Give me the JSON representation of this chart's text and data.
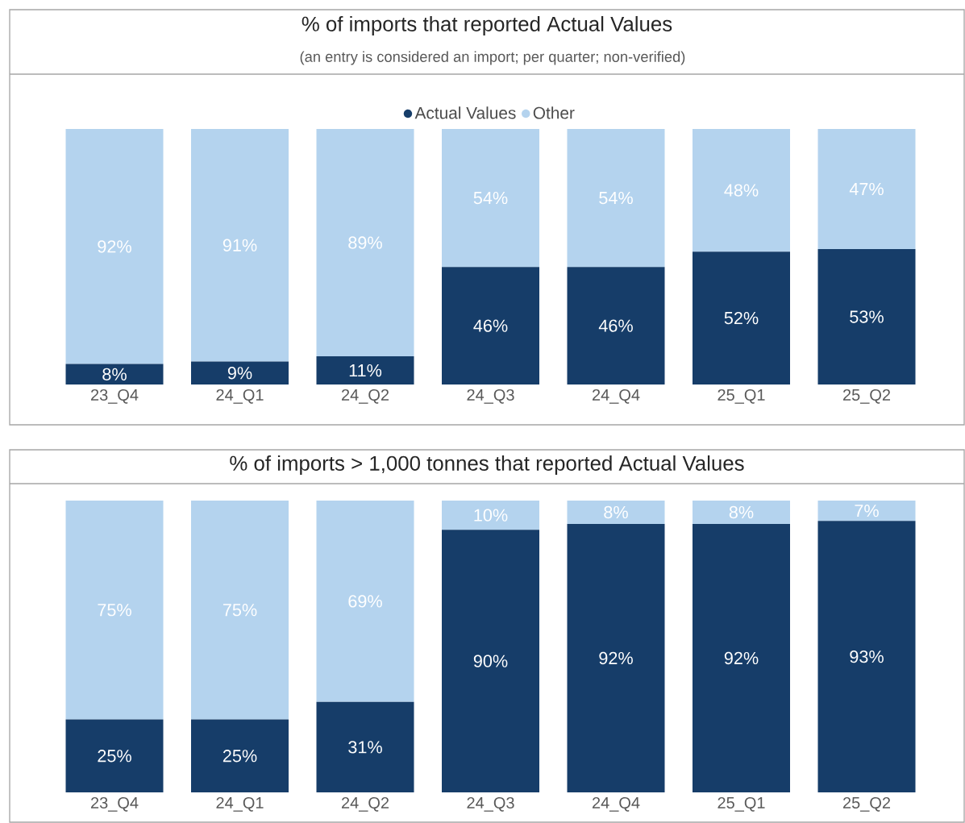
{
  "chart_data": [
    {
      "type": "bar",
      "title": "% of imports that reported Actual Values",
      "subtitle": "(an entry is considered an import; per quarter; non-verified)",
      "categories": [
        "23_Q4",
        "24_Q1",
        "24_Q2",
        "24_Q3",
        "24_Q4",
        "25_Q1",
        "25_Q2"
      ],
      "stacked": true,
      "legend": "top",
      "tick_labels": "x",
      "series": [
        {
          "name": "Actual Values",
          "color": "#163d69",
          "values": [
            8,
            9,
            11,
            46,
            46,
            52,
            53
          ],
          "value_labels": [
            "8%",
            "9%",
            "11%",
            "46%",
            "46%",
            "52%",
            "53%"
          ]
        },
        {
          "name": "Other",
          "color": "#b4d3ee",
          "values": [
            92,
            91,
            89,
            54,
            54,
            48,
            47
          ],
          "value_labels": [
            "92%",
            "91%",
            "89%",
            "54%",
            "54%",
            "48%",
            "47%"
          ]
        }
      ]
    },
    {
      "type": "bar",
      "title": "% of imports > 1,000 tonnes that reported Actual Values",
      "categories": [
        "23_Q4",
        "24_Q1",
        "24_Q2",
        "24_Q3",
        "24_Q4",
        "25_Q1",
        "25_Q2"
      ],
      "stacked": true,
      "tick_labels": "x",
      "series": [
        {
          "color": "#163d69",
          "values": [
            25,
            25,
            31,
            90,
            92,
            92,
            93
          ],
          "value_labels": [
            "25%",
            "25%",
            "31%",
            "90%",
            "92%",
            "92%",
            "93%"
          ]
        },
        {
          "color": "#b4d3ee",
          "values": [
            75,
            75,
            69,
            10,
            8,
            8,
            7
          ],
          "value_labels": [
            "75%",
            "75%",
            "69%",
            "10%",
            "8%",
            "8%",
            "7%"
          ]
        }
      ]
    }
  ]
}
